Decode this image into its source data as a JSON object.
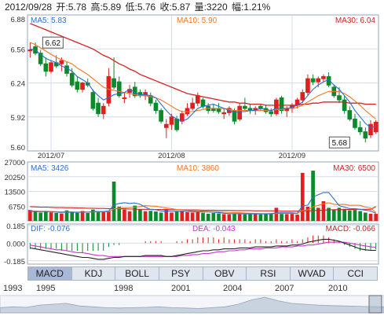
{
  "header": {
    "date": "2012/09/28",
    "open": "开:5.78",
    "high": "高:5.89",
    "low": "低:5.76",
    "close": "收:5.87",
    "volume": "量:3220",
    "change": "幅:1.21%"
  },
  "tabs": [
    "MACD",
    "KDJ",
    "BOLL",
    "PSY",
    "OBV",
    "RSI",
    "WVAD",
    "CCI"
  ],
  "active_tab": "MACD",
  "overview_years": [
    "1993",
    "1995",
    "1998",
    "2001",
    "2004",
    "2007",
    "2010"
  ],
  "colors": {
    "up": "#e02020",
    "down": "#0a8a2a",
    "ma5": "#2a6fd1",
    "ma10": "#ee7722",
    "ma30": "#d62020",
    "macd_dif": "#222222",
    "macd_dea": "#cc33cc",
    "grid": "#d6dde8",
    "border": "#9aa6b8"
  },
  "chart_data": [
    {
      "type": "candlestick",
      "title": "",
      "legend": [
        {
          "label": "MA5: 5.83"
        },
        {
          "label": "MA10: 5.90"
        },
        {
          "label": "MA30: 6.04"
        }
      ],
      "y_ticks": [
        "6.88",
        "6.56",
        "6.24",
        "5.92",
        "5.60"
      ],
      "x_ticks": [
        "2012/07",
        "2012/08",
        "2012/09"
      ],
      "ylim": [
        5.6,
        6.88
      ],
      "annotations": [
        {
          "label": "6.62"
        },
        {
          "label": "5.68"
        }
      ],
      "candles": [
        [
          6.55,
          6.62,
          6.48,
          6.55
        ],
        [
          6.58,
          6.62,
          6.5,
          6.52
        ],
        [
          6.52,
          6.55,
          6.4,
          6.42
        ],
        [
          6.42,
          6.48,
          6.3,
          6.35
        ],
        [
          6.35,
          6.45,
          6.33,
          6.43
        ],
        [
          6.43,
          6.5,
          6.38,
          6.4
        ],
        [
          6.42,
          6.48,
          6.35,
          6.45
        ],
        [
          6.4,
          6.44,
          6.3,
          6.33
        ],
        [
          6.33,
          6.38,
          6.2,
          6.22
        ],
        [
          6.25,
          6.3,
          6.15,
          6.18
        ],
        [
          6.18,
          6.25,
          6.15,
          6.24
        ],
        [
          6.24,
          6.28,
          6.2,
          6.22
        ],
        [
          6.15,
          6.18,
          5.98,
          6.0
        ],
        [
          6.05,
          6.1,
          5.92,
          5.95
        ],
        [
          5.95,
          6.05,
          5.9,
          6.02
        ],
        [
          6.05,
          6.38,
          6.02,
          6.3
        ],
        [
          6.28,
          6.48,
          6.18,
          6.2
        ],
        [
          6.25,
          6.3,
          6.1,
          6.12
        ],
        [
          6.1,
          6.15,
          6.05,
          6.1
        ],
        [
          6.15,
          6.22,
          6.1,
          6.18
        ],
        [
          6.2,
          6.25,
          6.1,
          6.12
        ],
        [
          6.15,
          6.18,
          6.1,
          6.12
        ],
        [
          6.12,
          6.18,
          6.08,
          6.15
        ],
        [
          6.12,
          6.15,
          6.02,
          6.05
        ],
        [
          6.05,
          6.08,
          5.95,
          5.98
        ],
        [
          5.98,
          6.0,
          5.86,
          5.88
        ],
        [
          5.82,
          5.9,
          5.72,
          5.85
        ],
        [
          5.85,
          5.95,
          5.8,
          5.92
        ],
        [
          5.9,
          5.93,
          5.78,
          5.8
        ],
        [
          5.88,
          5.98,
          5.85,
          5.95
        ],
        [
          5.95,
          6.05,
          5.93,
          6.0
        ],
        [
          6.0,
          6.1,
          5.98,
          6.05
        ],
        [
          6.05,
          6.15,
          6.02,
          6.12
        ],
        [
          6.08,
          6.1,
          6.0,
          6.02
        ],
        [
          6.02,
          6.05,
          5.95,
          5.98
        ],
        [
          6.0,
          6.04,
          5.96,
          5.98
        ],
        [
          6.0,
          6.05,
          5.95,
          5.97
        ],
        [
          5.95,
          6.0,
          5.9,
          5.96
        ],
        [
          5.96,
          6.02,
          5.93,
          6.0
        ],
        [
          5.98,
          6.0,
          5.85,
          5.88
        ],
        [
          5.9,
          6.05,
          5.88,
          6.02
        ],
        [
          6.02,
          6.1,
          5.98,
          6.0
        ],
        [
          6.0,
          6.04,
          5.95,
          5.98
        ],
        [
          5.98,
          6.02,
          5.94,
          6.0
        ],
        [
          6.02,
          6.04,
          5.98,
          6.0
        ],
        [
          6.0,
          6.03,
          5.95,
          5.97
        ],
        [
          5.97,
          6.0,
          5.92,
          5.95
        ],
        [
          5.95,
          6.1,
          5.93,
          6.08
        ],
        [
          6.1,
          6.12,
          5.95,
          5.98
        ],
        [
          5.98,
          6.02,
          5.92,
          6.0
        ],
        [
          6.0,
          6.05,
          5.96,
          6.03
        ],
        [
          6.03,
          6.1,
          6.0,
          6.08
        ],
        [
          6.08,
          6.18,
          6.05,
          6.15
        ],
        [
          6.15,
          6.32,
          6.12,
          6.28
        ],
        [
          6.28,
          6.32,
          6.22,
          6.25
        ],
        [
          6.25,
          6.3,
          6.2,
          6.28
        ],
        [
          6.28,
          6.32,
          6.25,
          6.3
        ],
        [
          6.3,
          6.34,
          6.2,
          6.22
        ],
        [
          6.2,
          6.22,
          6.1,
          6.12
        ],
        [
          6.12,
          6.2,
          6.05,
          6.08
        ],
        [
          6.08,
          6.12,
          5.95,
          5.98
        ],
        [
          5.98,
          6.02,
          5.88,
          5.9
        ],
        [
          5.9,
          5.95,
          5.8,
          5.82
        ],
        [
          5.82,
          5.88,
          5.75,
          5.78
        ],
        [
          5.78,
          5.82,
          5.68,
          5.72
        ],
        [
          5.75,
          5.89,
          5.72,
          5.85
        ],
        [
          5.78,
          5.89,
          5.76,
          5.87
        ]
      ],
      "ma5": [
        6.56,
        6.55,
        6.51,
        6.47,
        6.45,
        6.43,
        6.4,
        6.38,
        6.35,
        6.3,
        6.27,
        6.24,
        6.17,
        6.12,
        6.08,
        6.1,
        6.13,
        6.14,
        6.15,
        6.18,
        6.15,
        6.13,
        6.13,
        6.12,
        6.1,
        6.04,
        5.98,
        5.93,
        5.9,
        5.88,
        5.9,
        5.95,
        6.0,
        6.02,
        6.03,
        6.04,
        6.02,
        6.0,
        5.98,
        5.96,
        5.97,
        5.97,
        5.98,
        5.98,
        6.0,
        5.99,
        5.98,
        6.0,
        6.0,
        6.0,
        6.01,
        6.03,
        6.06,
        6.12,
        6.18,
        6.22,
        6.25,
        6.27,
        6.22,
        6.18,
        6.12,
        6.06,
        5.98,
        5.92,
        5.86,
        5.82,
        5.83
      ],
      "ma10": [
        6.62,
        6.6,
        6.57,
        6.54,
        6.51,
        6.48,
        6.46,
        6.44,
        6.42,
        6.38,
        6.35,
        6.32,
        6.28,
        6.24,
        6.2,
        6.18,
        6.17,
        6.16,
        6.15,
        6.14,
        6.13,
        6.12,
        6.12,
        6.11,
        6.1,
        6.08,
        6.05,
        6.02,
        5.99,
        5.97,
        5.97,
        5.97,
        5.98,
        5.99,
        6.0,
        6.0,
        6.0,
        6.0,
        5.99,
        5.98,
        5.98,
        5.98,
        5.98,
        5.98,
        5.98,
        5.98,
        5.98,
        5.99,
        5.99,
        6.0,
        6.0,
        6.01,
        6.03,
        6.06,
        6.09,
        6.12,
        6.14,
        6.16,
        6.16,
        6.16,
        6.14,
        6.11,
        6.07,
        6.03,
        5.98,
        5.94,
        5.9
      ],
      "ma30": [
        6.8,
        6.78,
        6.76,
        6.74,
        6.72,
        6.7,
        6.68,
        6.66,
        6.64,
        6.62,
        6.6,
        6.58,
        6.56,
        6.53,
        6.5,
        6.48,
        6.45,
        6.42,
        6.4,
        6.37,
        6.35,
        6.32,
        6.3,
        6.28,
        6.26,
        6.24,
        6.22,
        6.2,
        6.18,
        6.16,
        6.14,
        6.13,
        6.12,
        6.11,
        6.1,
        6.09,
        6.08,
        6.07,
        6.06,
        6.06,
        6.05,
        6.05,
        6.04,
        6.04,
        6.04,
        6.03,
        6.03,
        6.03,
        6.03,
        6.03,
        6.03,
        6.03,
        6.04,
        6.04,
        6.05,
        6.05,
        6.06,
        6.06,
        6.06,
        6.06,
        6.06,
        6.05,
        6.05,
        6.05,
        6.04,
        6.04,
        6.04
      ]
    },
    {
      "type": "bar",
      "title": "",
      "legend": [
        {
          "label": "MA5: 3426"
        },
        {
          "label": "MA10: 3860"
        },
        {
          "label": "MA30: 6500"
        }
      ],
      "y_ticks": [
        "27000",
        "20250",
        "13500",
        "6750"
      ],
      "ylim": [
        0,
        27000
      ],
      "values": [
        5000,
        4200,
        3800,
        4500,
        3900,
        3600,
        3400,
        4800,
        4000,
        3700,
        4500,
        3600,
        5200,
        4400,
        4000,
        4600,
        18000,
        6500,
        5200,
        4400,
        7000,
        5200,
        4400,
        4600,
        4300,
        3800,
        5200,
        3800,
        4300,
        4600,
        4000,
        3800,
        4000,
        3700,
        3300,
        3600,
        3400,
        3100,
        3000,
        3200,
        3100,
        3000,
        3300,
        3100,
        3000,
        3200,
        3500,
        6000,
        3200,
        3100,
        3200,
        2900,
        22000,
        6500,
        23000,
        6000,
        9000,
        6000,
        5200,
        6000,
        5500,
        4800,
        5000,
        4500,
        3800,
        3300,
        3220
      ],
      "ma5": [
        4400,
        4300,
        4200,
        4300,
        4200,
        4000,
        3900,
        4000,
        4000,
        3900,
        4100,
        4000,
        4300,
        4300,
        4300,
        4500,
        7300,
        8000,
        8300,
        8000,
        8200,
        7600,
        6300,
        5200,
        5100,
        4500,
        4500,
        4400,
        4400,
        4400,
        4400,
        4200,
        4200,
        4100,
        4100,
        4000,
        3800,
        3500,
        3300,
        3300,
        3300,
        3200,
        3200,
        3200,
        3200,
        3200,
        3200,
        3700,
        3700,
        3700,
        3700,
        3500,
        7000,
        7200,
        11000,
        12000,
        13000,
        13000,
        10000,
        7000,
        6300,
        5600,
        5600,
        5300,
        4900,
        4500,
        3426
      ],
      "ma10": [
        4600,
        4500,
        4400,
        4400,
        4300,
        4200,
        4100,
        4100,
        4100,
        4000,
        4000,
        4000,
        4100,
        4100,
        4100,
        4200,
        5500,
        5800,
        6000,
        6000,
        6300,
        6500,
        7000,
        6800,
        6700,
        6300,
        5900,
        5600,
        5200,
        5000,
        4800,
        4600,
        4500,
        4400,
        4300,
        4200,
        4100,
        4000,
        3900,
        3800,
        3700,
        3600,
        3500,
        3400,
        3300,
        3300,
        3300,
        3400,
        3400,
        3400,
        3400,
        3400,
        4700,
        5000,
        6500,
        7100,
        7800,
        8300,
        7600,
        7500,
        7600,
        7100,
        7200,
        7100,
        6300,
        5900,
        3860
      ],
      "ma30": [
        6500,
        6400,
        6300,
        6300,
        6200,
        6100,
        6100,
        6000,
        6000,
        5900,
        5900,
        5800,
        5800,
        5700,
        5700,
        5600,
        5600,
        5500,
        5500,
        5400,
        5400,
        5300,
        5300,
        5300,
        5200,
        5200,
        5200,
        5100,
        5100,
        5100,
        5000,
        5000,
        5000,
        4900,
        4900,
        4900,
        4800,
        4800,
        4800,
        4700,
        4700,
        4700,
        4700,
        4600,
        4600,
        4600,
        4600,
        4600,
        4500,
        4500,
        4500,
        4500,
        4600,
        4600,
        4700,
        4800,
        4900,
        5000,
        5100,
        5100,
        5200,
        5200,
        5300,
        5300,
        5300,
        5300,
        6500
      ]
    },
    {
      "type": "line",
      "title": "",
      "legend": [
        {
          "label": "DIF: -0.076"
        },
        {
          "label": "DEA: -0.043"
        },
        {
          "label": "MACD: -0.066"
        }
      ],
      "y_ticks": [
        "0.185",
        "0.000",
        "-0.185"
      ],
      "ylim": [
        -0.22,
        0.2
      ],
      "dif": [
        -0.05,
        -0.06,
        -0.07,
        -0.08,
        -0.09,
        -0.1,
        -0.11,
        -0.12,
        -0.13,
        -0.14,
        -0.15,
        -0.15,
        -0.16,
        -0.17,
        -0.17,
        -0.16,
        -0.15,
        -0.15,
        -0.14,
        -0.14,
        -0.14,
        -0.14,
        -0.13,
        -0.13,
        -0.13,
        -0.13,
        -0.14,
        -0.14,
        -0.13,
        -0.12,
        -0.11,
        -0.1,
        -0.09,
        -0.08,
        -0.08,
        -0.07,
        -0.07,
        -0.06,
        -0.06,
        -0.06,
        -0.05,
        -0.05,
        -0.05,
        -0.04,
        -0.04,
        -0.04,
        -0.04,
        -0.03,
        -0.03,
        -0.03,
        -0.02,
        -0.02,
        -0.01,
        0.01,
        0.02,
        0.03,
        0.04,
        0.04,
        0.03,
        0.02,
        0.0,
        -0.02,
        -0.04,
        -0.06,
        -0.07,
        -0.075,
        -0.076
      ],
      "dea": [
        -0.02,
        -0.03,
        -0.04,
        -0.05,
        -0.06,
        -0.07,
        -0.07,
        -0.08,
        -0.09,
        -0.1,
        -0.1,
        -0.11,
        -0.12,
        -0.13,
        -0.13,
        -0.14,
        -0.14,
        -0.14,
        -0.14,
        -0.14,
        -0.14,
        -0.14,
        -0.14,
        -0.14,
        -0.14,
        -0.14,
        -0.14,
        -0.14,
        -0.14,
        -0.13,
        -0.13,
        -0.12,
        -0.12,
        -0.11,
        -0.11,
        -0.1,
        -0.09,
        -0.09,
        -0.08,
        -0.08,
        -0.07,
        -0.07,
        -0.06,
        -0.06,
        -0.06,
        -0.05,
        -0.05,
        -0.05,
        -0.04,
        -0.04,
        -0.04,
        -0.03,
        -0.03,
        -0.02,
        -0.02,
        -0.01,
        0.0,
        0.01,
        0.01,
        0.01,
        0.01,
        0.0,
        -0.01,
        -0.02,
        -0.03,
        -0.04,
        -0.043
      ],
      "macd": [
        -0.06,
        -0.06,
        -0.06,
        -0.06,
        -0.06,
        -0.06,
        -0.08,
        -0.08,
        -0.08,
        -0.08,
        -0.1,
        -0.08,
        -0.08,
        -0.08,
        -0.08,
        -0.04,
        -0.02,
        -0.02,
        0.0,
        0.0,
        0.0,
        0.0,
        0.02,
        0.02,
        0.02,
        0.02,
        0.0,
        0.0,
        0.02,
        0.02,
        0.04,
        0.04,
        0.06,
        0.06,
        0.06,
        0.06,
        0.04,
        0.06,
        0.04,
        0.04,
        0.04,
        0.04,
        0.02,
        0.04,
        0.04,
        0.02,
        0.02,
        0.04,
        0.02,
        0.02,
        0.04,
        0.02,
        0.04,
        0.06,
        0.08,
        0.08,
        0.08,
        0.06,
        0.04,
        0.02,
        -0.02,
        -0.04,
        -0.06,
        -0.08,
        -0.08,
        -0.07,
        -0.066
      ]
    }
  ]
}
